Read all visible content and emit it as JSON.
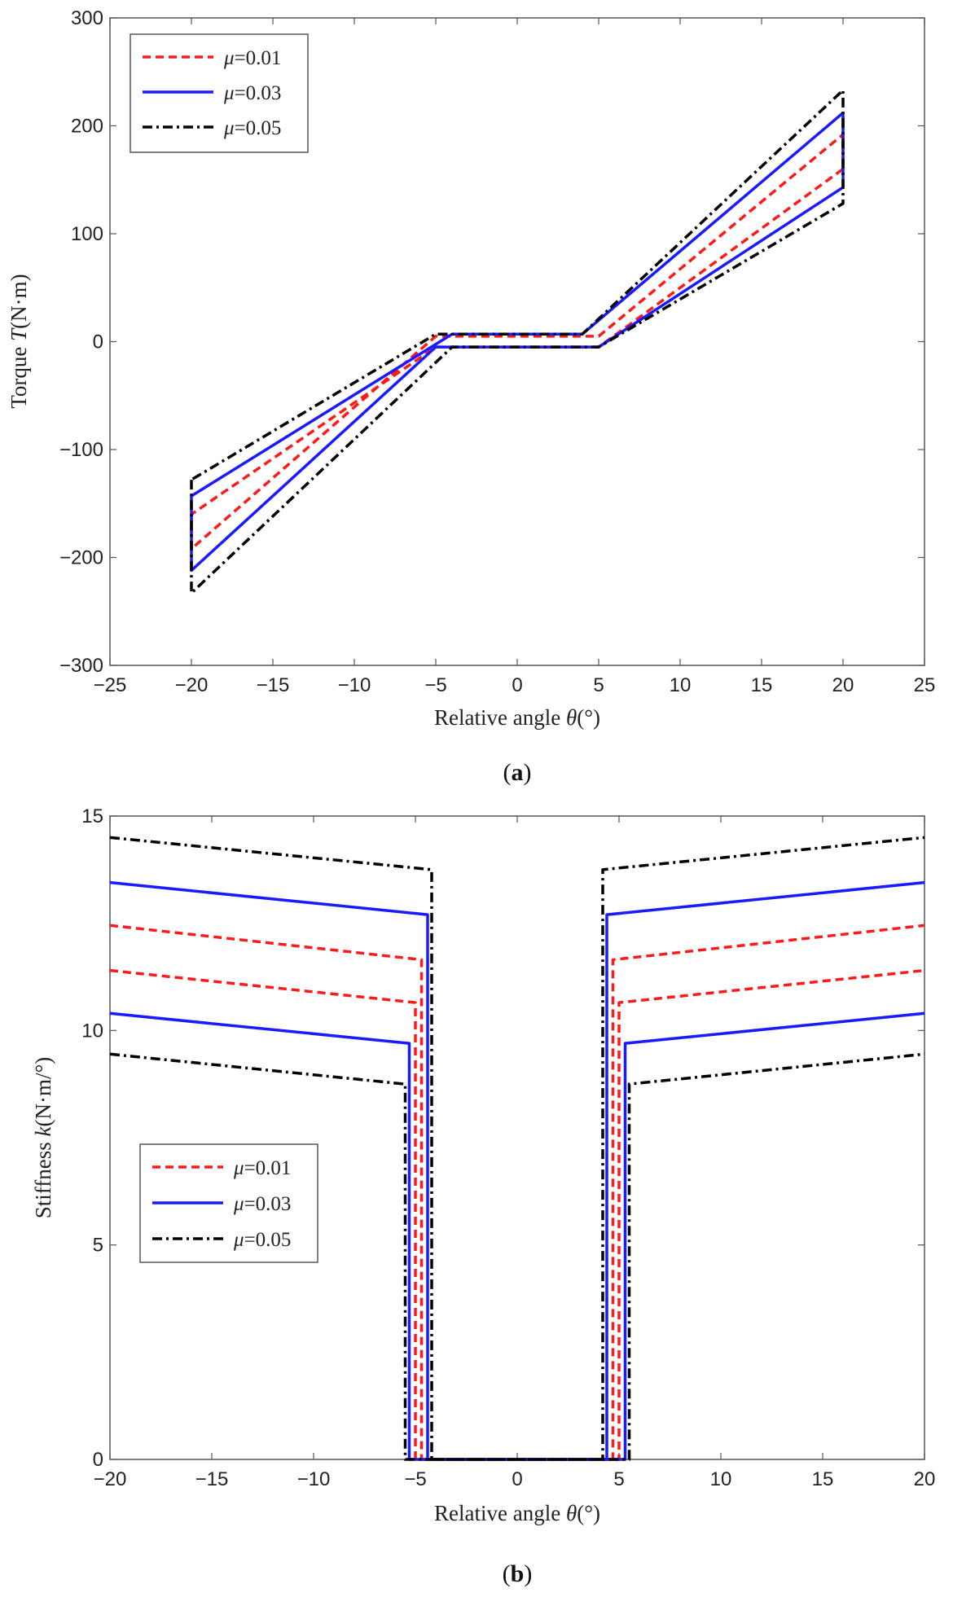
{
  "figure": {
    "panel_a_label": {
      "open": "(",
      "letter": "a",
      "close": ")"
    },
    "panel_b_label": {
      "open": "(",
      "letter": "b",
      "close": ")"
    }
  },
  "chart_data": [
    {
      "id": "a",
      "type": "line",
      "xlabel_prefix": "Relative angle ",
      "xlabel_symbol": "θ",
      "xlabel_unit": "(°)",
      "ylabel_prefix": "Torque ",
      "ylabel_symbol": "T",
      "ylabel_unit": "(N·m)",
      "xlim": [
        -25,
        25
      ],
      "ylim": [
        -300,
        300
      ],
      "xticks": [
        -25,
        -20,
        -15,
        -10,
        -5,
        0,
        5,
        10,
        15,
        20,
        25
      ],
      "yticks": [
        -300,
        -200,
        -100,
        0,
        100,
        200,
        300
      ],
      "xtick_labels": [
        "−25",
        "−20",
        "−15",
        "−10",
        "−5",
        "0",
        "5",
        "10",
        "15",
        "20",
        "25"
      ],
      "ytick_labels": [
        "−300",
        "−200",
        "−100",
        "0",
        "100",
        "200",
        "300"
      ],
      "legend_position": "top-left",
      "series": [
        {
          "name": "μ=0.01",
          "symbol": "μ",
          "value_text": "=0.01",
          "color": "#ff1a1a",
          "dash": "dashed",
          "points": [
            [
              -20,
              -160
            ],
            [
              -20,
              -192
            ],
            [
              -5,
              5
            ],
            [
              5,
              5
            ],
            [
              20,
              192
            ],
            [
              20,
              160
            ],
            [
              5,
              -5
            ],
            [
              -5,
              -5
            ],
            [
              -20,
              -160
            ]
          ]
        },
        {
          "name": "μ=0.03",
          "symbol": "μ",
          "value_text": "=0.03",
          "color": "#1a1aff",
          "dash": "solid",
          "points": [
            [
              -20,
              -143
            ],
            [
              -20,
              -212
            ],
            [
              -5,
              -5
            ],
            [
              5,
              -5
            ],
            [
              20,
              143
            ],
            [
              20,
              212
            ],
            [
              4,
              7
            ],
            [
              -4,
              7
            ],
            [
              -20,
              -143
            ]
          ]
        },
        {
          "name": "μ=0.05",
          "symbol": "μ",
          "value_text": "=0.05",
          "color": "#000000",
          "dash": "dashdot",
          "points": [
            [
              -20,
              -128
            ],
            [
              -20,
              -233
            ],
            [
              -4,
              -5
            ],
            [
              5,
              -5
            ],
            [
              20,
              128
            ],
            [
              20,
              233
            ],
            [
              4,
              7
            ],
            [
              -5,
              7
            ],
            [
              -20,
              -128
            ]
          ]
        }
      ]
    },
    {
      "id": "b",
      "type": "line",
      "xlabel_prefix": "Relative angle ",
      "xlabel_symbol": "θ",
      "xlabel_unit": "(°)",
      "ylabel_prefix": "Stiffness ",
      "ylabel_symbol": "k",
      "ylabel_unit": "(N·m/°)",
      "xlim": [
        -20,
        20
      ],
      "ylim": [
        0,
        15
      ],
      "xticks": [
        -20,
        -15,
        -10,
        -5,
        0,
        5,
        10,
        15,
        20
      ],
      "yticks": [
        0,
        5,
        10,
        15
      ],
      "xtick_labels": [
        "−20",
        "−15",
        "−10",
        "−5",
        "0",
        "5",
        "10",
        "15",
        "20"
      ],
      "ytick_labels": [
        "0",
        "5",
        "10",
        "15"
      ],
      "legend_position": "center-left",
      "series": [
        {
          "name": "μ=0.01",
          "symbol": "μ",
          "value_text": "=0.01",
          "color": "#ff1a1a",
          "dash": "dashed",
          "lines": [
            [
              [
                -20,
                12.45
              ],
              [
                -4.7,
                11.65
              ],
              [
                -4.7,
                0
              ],
              [
                -3.8,
                0
              ],
              [
                3.8,
                0
              ],
              [
                4.7,
                0
              ],
              [
                4.7,
                11.65
              ],
              [
                20,
                12.45
              ]
            ],
            [
              [
                -20,
                11.4
              ],
              [
                -5.0,
                10.65
              ],
              [
                -5.0,
                0
              ],
              [
                -3.8,
                0
              ],
              [
                3.8,
                0
              ],
              [
                5.0,
                0
              ],
              [
                5.0,
                10.65
              ],
              [
                20,
                11.4
              ]
            ]
          ]
        },
        {
          "name": "μ=0.03",
          "symbol": "μ",
          "value_text": "=0.03",
          "color": "#1a1aff",
          "dash": "solid",
          "lines": [
            [
              [
                -20,
                13.45
              ],
              [
                -4.4,
                12.7
              ],
              [
                -4.4,
                0
              ],
              [
                -3.8,
                0
              ],
              [
                3.8,
                0
              ],
              [
                4.4,
                0
              ],
              [
                4.4,
                12.7
              ],
              [
                20,
                13.45
              ]
            ],
            [
              [
                -20,
                10.4
              ],
              [
                -5.3,
                9.7
              ],
              [
                -5.3,
                0
              ],
              [
                -3.8,
                0
              ],
              [
                3.8,
                0
              ],
              [
                5.3,
                0
              ],
              [
                5.3,
                9.7
              ],
              [
                20,
                10.4
              ]
            ]
          ]
        },
        {
          "name": "μ=0.05",
          "symbol": "μ",
          "value_text": "=0.05",
          "color": "#000000",
          "dash": "dashdot",
          "lines": [
            [
              [
                -20,
                14.5
              ],
              [
                -4.2,
                13.75
              ],
              [
                -4.2,
                0
              ],
              [
                -3.8,
                0
              ],
              [
                3.8,
                0
              ],
              [
                4.2,
                0
              ],
              [
                4.2,
                13.75
              ],
              [
                20,
                14.5
              ]
            ],
            [
              [
                -20,
                9.45
              ],
              [
                -5.5,
                8.75
              ],
              [
                -5.5,
                0
              ],
              [
                -3.8,
                0
              ],
              [
                3.8,
                0
              ],
              [
                5.5,
                0
              ],
              [
                5.5,
                8.75
              ],
              [
                20,
                9.45
              ]
            ]
          ]
        }
      ]
    }
  ]
}
